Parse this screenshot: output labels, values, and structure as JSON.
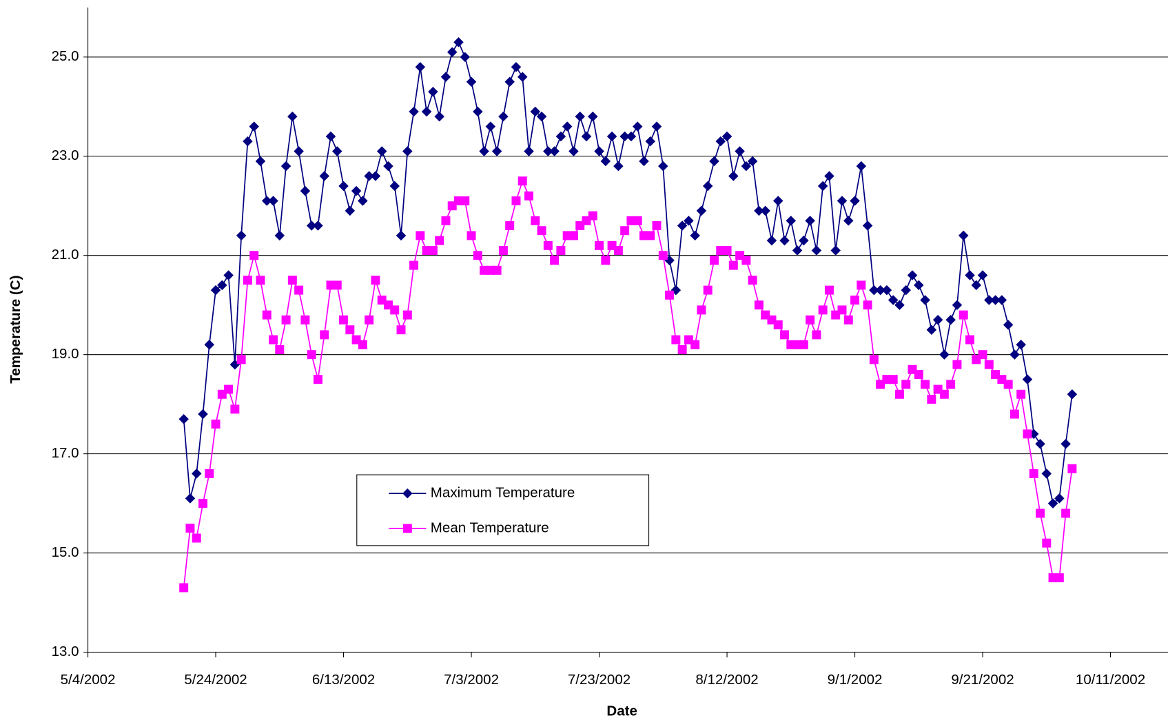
{
  "chart_data": {
    "type": "line",
    "xlabel": "Date",
    "ylabel": "Temperature (C)",
    "x": [
      "5/19/2002",
      "5/20/2002",
      "5/21/2002",
      "5/22/2002",
      "5/23/2002",
      "5/24/2002",
      "5/25/2002",
      "5/26/2002",
      "5/27/2002",
      "5/28/2002",
      "5/29/2002",
      "5/30/2002",
      "5/31/2002",
      "6/1/2002",
      "6/2/2002",
      "6/3/2002",
      "6/4/2002",
      "6/5/2002",
      "6/6/2002",
      "6/7/2002",
      "6/8/2002",
      "6/9/2002",
      "6/10/2002",
      "6/11/2002",
      "6/12/2002",
      "6/13/2002",
      "6/14/2002",
      "6/15/2002",
      "6/16/2002",
      "6/17/2002",
      "6/18/2002",
      "6/19/2002",
      "6/20/2002",
      "6/21/2002",
      "6/22/2002",
      "6/23/2002",
      "6/24/2002",
      "6/25/2002",
      "6/26/2002",
      "6/27/2002",
      "6/28/2002",
      "6/29/2002",
      "6/30/2002",
      "7/1/2002",
      "7/2/2002",
      "7/3/2002",
      "7/4/2002",
      "7/5/2002",
      "7/6/2002",
      "7/7/2002",
      "7/8/2002",
      "7/9/2002",
      "7/10/2002",
      "7/11/2002",
      "7/12/2002",
      "7/13/2002",
      "7/14/2002",
      "7/15/2002",
      "7/16/2002",
      "7/17/2002",
      "7/18/2002",
      "7/19/2002",
      "7/20/2002",
      "7/21/2002",
      "7/22/2002",
      "7/23/2002",
      "7/24/2002",
      "7/25/2002",
      "7/26/2002",
      "7/27/2002",
      "7/28/2002",
      "7/29/2002",
      "7/30/2002",
      "7/31/2002",
      "8/1/2002",
      "8/2/2002",
      "8/3/2002",
      "8/4/2002",
      "8/5/2002",
      "8/6/2002",
      "8/7/2002",
      "8/8/2002",
      "8/9/2002",
      "8/10/2002",
      "8/11/2002",
      "8/12/2002",
      "8/13/2002",
      "8/14/2002",
      "8/15/2002",
      "8/16/2002",
      "8/17/2002",
      "8/18/2002",
      "8/19/2002",
      "8/20/2002",
      "8/21/2002",
      "8/22/2002",
      "8/23/2002",
      "8/24/2002",
      "8/25/2002",
      "8/26/2002",
      "8/27/2002",
      "8/28/2002",
      "8/29/2002",
      "8/30/2002",
      "8/31/2002",
      "9/1/2002",
      "9/2/2002",
      "9/3/2002",
      "9/4/2002",
      "9/5/2002",
      "9/6/2002",
      "9/7/2002",
      "9/8/2002",
      "9/9/2002",
      "9/10/2002",
      "9/11/2002",
      "9/12/2002",
      "9/13/2002",
      "9/14/2002",
      "9/15/2002",
      "9/16/2002",
      "9/17/2002",
      "9/18/2002",
      "9/19/2002",
      "9/20/2002",
      "9/21/2002",
      "9/22/2002",
      "9/23/2002",
      "9/24/2002",
      "9/25/2002",
      "9/26/2002",
      "9/27/2002",
      "9/28/2002",
      "9/29/2002",
      "9/30/2002",
      "10/1/2002",
      "10/2/2002",
      "10/3/2002",
      "10/4/2002",
      "10/5/2002"
    ],
    "series": [
      {
        "name": "Maximum Temperature",
        "color": "#000080",
        "marker": "diamond",
        "values": [
          17.7,
          16.1,
          16.6,
          17.8,
          19.2,
          20.3,
          20.4,
          20.6,
          18.8,
          21.4,
          23.3,
          23.6,
          22.9,
          22.1,
          22.1,
          21.4,
          22.8,
          23.8,
          23.1,
          22.3,
          21.6,
          21.6,
          22.6,
          23.4,
          23.1,
          22.4,
          21.9,
          22.3,
          22.1,
          22.6,
          22.6,
          23.1,
          22.8,
          22.4,
          21.4,
          23.1,
          23.9,
          24.8,
          23.9,
          24.3,
          23.8,
          24.6,
          25.1,
          25.3,
          25.0,
          24.5,
          23.9,
          23.1,
          23.6,
          23.1,
          23.8,
          24.5,
          24.8,
          24.6,
          23.1,
          23.9,
          23.8,
          23.1,
          23.1,
          23.4,
          23.6,
          23.1,
          23.8,
          23.4,
          23.8,
          23.1,
          22.9,
          23.4,
          22.8,
          23.4,
          23.4,
          23.6,
          22.9,
          23.3,
          23.6,
          22.8,
          20.9,
          20.3,
          21.6,
          21.7,
          21.4,
          21.9,
          22.4,
          22.9,
          23.3,
          23.4,
          22.6,
          23.1,
          22.8,
          22.9,
          21.9,
          21.9,
          21.3,
          22.1,
          21.3,
          21.7,
          21.1,
          21.3,
          21.7,
          21.1,
          22.4,
          22.6,
          21.1,
          22.1,
          21.7,
          22.1,
          22.8,
          21.6,
          20.3,
          20.3,
          20.3,
          20.1,
          20.0,
          20.3,
          20.6,
          20.4,
          20.1,
          19.5,
          19.7,
          19.0,
          19.7,
          20.0,
          21.4,
          20.6,
          20.4,
          20.6,
          20.1,
          20.1,
          20.1,
          19.6,
          19.0,
          19.2,
          18.5,
          17.4,
          17.2,
          16.6,
          16.0,
          16.1,
          17.2,
          18.2
        ]
      },
      {
        "name": "Mean Temperature",
        "color": "#ff00ff",
        "marker": "square",
        "values": [
          14.3,
          15.5,
          15.3,
          16.0,
          16.6,
          17.6,
          18.2,
          18.3,
          17.9,
          18.9,
          20.5,
          21.0,
          20.5,
          19.8,
          19.3,
          19.1,
          19.7,
          20.5,
          20.3,
          19.7,
          19.0,
          18.5,
          19.4,
          20.4,
          20.4,
          19.7,
          19.5,
          19.3,
          19.2,
          19.7,
          20.5,
          20.1,
          20.0,
          19.9,
          19.5,
          19.8,
          20.8,
          21.4,
          21.1,
          21.1,
          21.3,
          21.7,
          22.0,
          22.1,
          22.1,
          21.4,
          21.0,
          20.7,
          20.7,
          20.7,
          21.1,
          21.6,
          22.1,
          22.5,
          22.2,
          21.7,
          21.5,
          21.2,
          20.9,
          21.1,
          21.4,
          21.4,
          21.6,
          21.7,
          21.8,
          21.2,
          20.9,
          21.2,
          21.1,
          21.5,
          21.7,
          21.7,
          21.4,
          21.4,
          21.6,
          21.0,
          20.2,
          19.3,
          19.1,
          19.3,
          19.2,
          19.9,
          20.3,
          20.9,
          21.1,
          21.1,
          20.8,
          21.0,
          20.9,
          20.5,
          20.0,
          19.8,
          19.7,
          19.6,
          19.4,
          19.2,
          19.2,
          19.2,
          19.7,
          19.4,
          19.9,
          20.3,
          19.8,
          19.9,
          19.7,
          20.1,
          20.4,
          20.0,
          18.9,
          18.4,
          18.5,
          18.5,
          18.2,
          18.4,
          18.7,
          18.6,
          18.4,
          18.1,
          18.3,
          18.2,
          18.4,
          18.8,
          19.8,
          19.3,
          18.9,
          19.0,
          18.8,
          18.6,
          18.5,
          18.4,
          17.8,
          18.2,
          17.4,
          16.6,
          15.8,
          15.2,
          14.5,
          14.5,
          15.8,
          16.7
        ]
      }
    ],
    "xlim": [
      "5/4/2002",
      "10/20/2002"
    ],
    "xticks": [
      "5/4/2002",
      "5/24/2002",
      "6/13/2002",
      "7/3/2002",
      "7/23/2002",
      "8/12/2002",
      "9/1/2002",
      "9/21/2002",
      "10/11/2002"
    ],
    "ylim": [
      13,
      26
    ],
    "yticks": [
      {
        "value": 13,
        "label": "13.0"
      },
      {
        "value": 15,
        "label": "15.0"
      },
      {
        "value": 17,
        "label": "17.0"
      },
      {
        "value": 19,
        "label": "19.0"
      },
      {
        "value": 21,
        "label": "21.0"
      },
      {
        "value": 23,
        "label": "23.0"
      },
      {
        "value": 25,
        "label": "25.0"
      }
    ],
    "grid": true
  }
}
